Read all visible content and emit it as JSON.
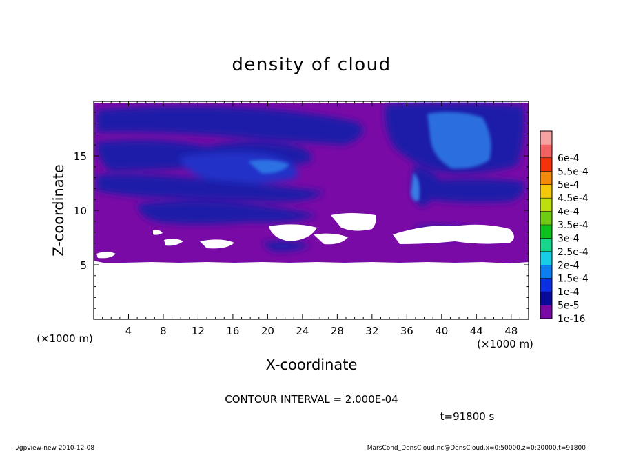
{
  "chart_data": {
    "type": "heatmap",
    "title": "density of cloud",
    "xlabel": "X-coordinate",
    "ylabel": "Z-coordinate",
    "x_unit": "(×1000 m)",
    "y_unit": "(×1000 m)",
    "xlim": [
      0,
      50
    ],
    "ylim": [
      0,
      20
    ],
    "x_ticks": [
      "4",
      "8",
      "12",
      "16",
      "20",
      "24",
      "28",
      "32",
      "36",
      "40",
      "44",
      "48"
    ],
    "y_ticks": [
      "5",
      "10",
      "15"
    ],
    "colorbar": {
      "labels": [
        "1e-16",
        "5e-5",
        "1e-4",
        "1.5e-4",
        "2e-4",
        "2.5e-4",
        "3e-4",
        "3.5e-4",
        "4e-4",
        "4.5e-4",
        "5e-4",
        "5.5e-4",
        "6e-4"
      ],
      "colors": [
        "#7a0aa6",
        "#0a0a9a",
        "#0a2ee0",
        "#0c7ef2",
        "#16cfe6",
        "#18d68c",
        "#0cc21e",
        "#6fcc10",
        "#bde00c",
        "#f5c80a",
        "#f58a0a",
        "#f5320a",
        "#f26262",
        "#f7a2a2"
      ]
    },
    "contour_interval": "CONTOUR INTERVAL = 2.000E-04",
    "time": "t=91800 s"
  },
  "footer": {
    "left": "./gpview-new   2010-12-08",
    "right": "MarsCond_DensCloud.nc@DensCloud,x=0:50000,z=0:20000,t=91800"
  }
}
